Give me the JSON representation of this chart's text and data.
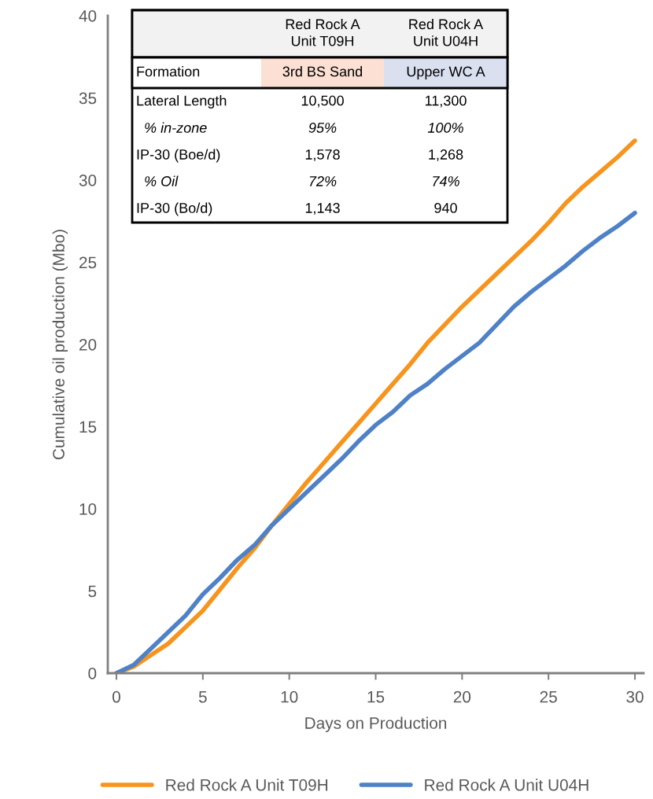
{
  "chart_data": {
    "type": "line",
    "xlabel": "Days on Production",
    "ylabel": "Cumulative oil production (Mbo)",
    "x": [
      0,
      1,
      2,
      3,
      4,
      5,
      6,
      7,
      8,
      9,
      10,
      11,
      12,
      13,
      14,
      15,
      16,
      17,
      18,
      19,
      20,
      21,
      22,
      23,
      24,
      25,
      26,
      27,
      28,
      29,
      30
    ],
    "xlim": [
      -0.5,
      30.5
    ],
    "xticks": [
      0,
      5,
      10,
      15,
      20,
      25,
      30
    ],
    "ylim": [
      0,
      40
    ],
    "yticks": [
      0,
      5,
      10,
      15,
      20,
      25,
      30,
      35,
      40
    ],
    "grid": false,
    "legend": "bottom",
    "line_style": "solid",
    "marker": "none",
    "series": [
      {
        "name": "Red Rock A Unit T09H",
        "color": "#f7941d",
        "values": [
          0,
          0.4,
          1.1,
          1.8,
          2.8,
          3.8,
          5.1,
          6.4,
          7.6,
          9.0,
          10.3,
          11.6,
          12.8,
          14.0,
          15.2,
          16.4,
          17.6,
          18.8,
          20.1,
          21.2,
          22.3,
          23.3,
          24.3,
          25.3,
          26.3,
          27.4,
          28.6,
          29.6,
          30.5,
          31.4,
          32.4
        ]
      },
      {
        "name": "Red Rock A Unit U04H",
        "color": "#4f81c7",
        "values": [
          0,
          0.5,
          1.5,
          2.5,
          3.5,
          4.8,
          5.8,
          6.9,
          7.8,
          9.0,
          10.0,
          11.0,
          12.0,
          13.0,
          14.1,
          15.1,
          15.9,
          16.9,
          17.6,
          18.5,
          19.3,
          20.1,
          21.2,
          22.3,
          23.2,
          24.0,
          24.8,
          25.7,
          26.5,
          27.2,
          28.0
        ]
      }
    ],
    "annotations": [
      "Red Rock A\nUnit T09H",
      "Red Rock A\nUnit U04H",
      "Formation",
      "3rd BS Sand",
      "Upper WC A",
      "Lateral Length",
      "10,500",
      "11,300",
      "  % in-zone",
      "95%",
      "100%",
      "IP-30 (Boe/d)",
      "1,578",
      "1,268",
      "  % Oil",
      "72%",
      "74%",
      "IP-30 (Bo/d)",
      "1,143",
      "940"
    ]
  }
}
